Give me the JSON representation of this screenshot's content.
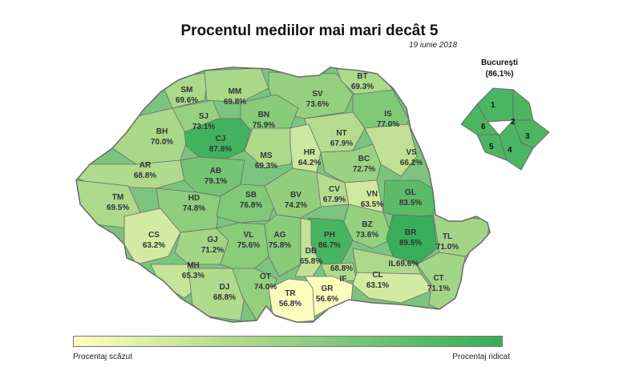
{
  "title": "Procentul mediilor mai mari decât 5",
  "date": "19 iunie 2018",
  "colors": {
    "low": "#ffffc0",
    "mid": "#b5dc8e",
    "high": "#35ad59",
    "border": "#6a6a6a"
  },
  "counties": [
    {
      "code": "SM",
      "value": "69.6%",
      "pct": 69.6
    },
    {
      "code": "MM",
      "value": "69.8%",
      "pct": 69.8
    },
    {
      "code": "BT",
      "value": "69.3%",
      "pct": 69.3
    },
    {
      "code": "SV",
      "value": "73.6%",
      "pct": 73.6
    },
    {
      "code": "SJ",
      "value": "73.1%",
      "pct": 73.1
    },
    {
      "code": "BN",
      "value": "75.9%",
      "pct": 75.9
    },
    {
      "code": "IS",
      "value": "77.0%",
      "pct": 77.0
    },
    {
      "code": "BH",
      "value": "70.0%",
      "pct": 70.0
    },
    {
      "code": "CJ",
      "value": "87.8%",
      "pct": 87.8
    },
    {
      "code": "NT",
      "value": "67.9%",
      "pct": 67.9
    },
    {
      "code": "VS",
      "value": "66.2%",
      "pct": 66.2
    },
    {
      "code": "MS",
      "value": "69.3%",
      "pct": 69.3
    },
    {
      "code": "HR",
      "value": "64.2%",
      "pct": 64.2
    },
    {
      "code": "BC",
      "value": "72.7%",
      "pct": 72.7
    },
    {
      "code": "AR",
      "value": "68.8%",
      "pct": 68.8
    },
    {
      "code": "AB",
      "value": "79.1%",
      "pct": 79.1
    },
    {
      "code": "CV",
      "value": "67.9%",
      "pct": 67.9
    },
    {
      "code": "VN",
      "value": "63.5%",
      "pct": 63.5
    },
    {
      "code": "GL",
      "value": "83.5%",
      "pct": 83.5
    },
    {
      "code": "TM",
      "value": "69.5%",
      "pct": 69.5
    },
    {
      "code": "HD",
      "value": "74.8%",
      "pct": 74.8
    },
    {
      "code": "SB",
      "value": "76.8%",
      "pct": 76.8
    },
    {
      "code": "BV",
      "value": "74.2%",
      "pct": 74.2
    },
    {
      "code": "BZ",
      "value": "73.6%",
      "pct": 73.6
    },
    {
      "code": "CS",
      "value": "63.2%",
      "pct": 63.2
    },
    {
      "code": "PH",
      "value": "86.7%",
      "pct": 86.7
    },
    {
      "code": "BR",
      "value": "89.5%",
      "pct": 89.5
    },
    {
      "code": "TL",
      "value": "71.0%",
      "pct": 71.0
    },
    {
      "code": "GJ",
      "value": "71.2%",
      "pct": 71.2
    },
    {
      "code": "VL",
      "value": "75.6%",
      "pct": 75.6
    },
    {
      "code": "AG",
      "value": "75.8%",
      "pct": 75.8
    },
    {
      "code": "DB",
      "value": "65.8%",
      "pct": 65.8
    },
    {
      "code": "IF",
      "value": "68.8%",
      "pct": 68.8
    },
    {
      "code": "IL",
      "value": "69.6%",
      "pct": 69.6
    },
    {
      "code": "MH",
      "value": "65.3%",
      "pct": 65.3
    },
    {
      "code": "OT",
      "value": "74.0%",
      "pct": 74.0
    },
    {
      "code": "CL",
      "value": "63.1%",
      "pct": 63.1
    },
    {
      "code": "DJ",
      "value": "68.8%",
      "pct": 68.8
    },
    {
      "code": "TR",
      "value": "56.8%",
      "pct": 56.8
    },
    {
      "code": "GR",
      "value": "56.6%",
      "pct": 56.6
    },
    {
      "code": "CT",
      "value": "71.1%",
      "pct": 71.1
    }
  ],
  "bucuresti": {
    "name": "București",
    "value": "(86,1%)",
    "pct": 86.1,
    "sectors": [
      "1",
      "2",
      "3",
      "4",
      "5",
      "6"
    ]
  },
  "legend": {
    "low_label": "Procentaj scăzut",
    "high_label": "Procentaj ridicat"
  }
}
